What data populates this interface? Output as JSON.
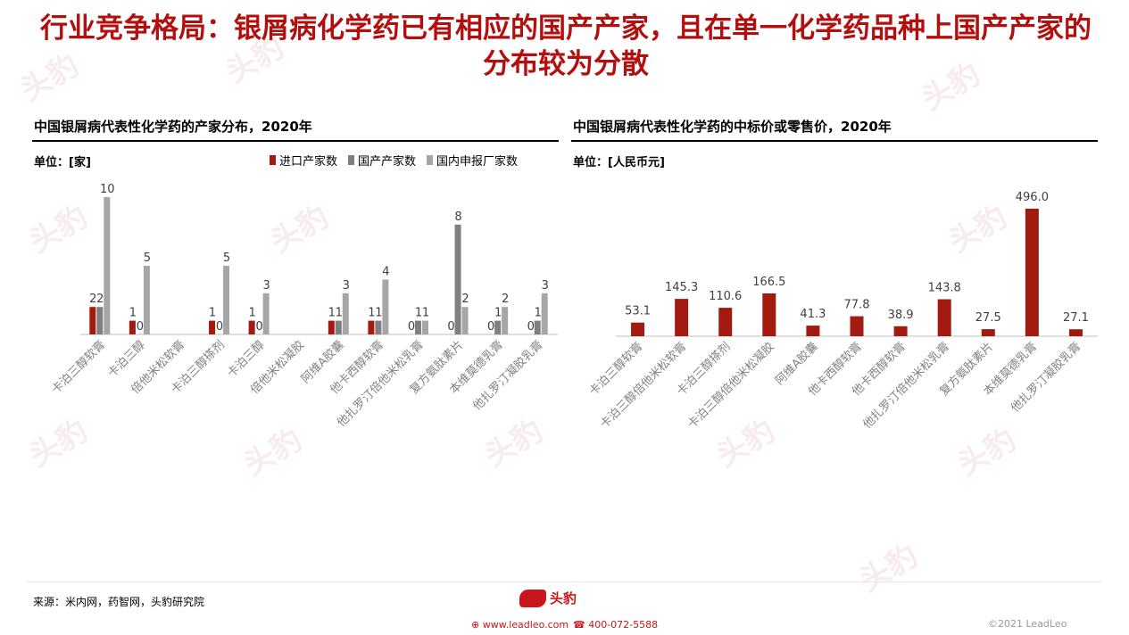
{
  "page_title": "行业竞争格局：银屑病化学药已有相应的国产产家，且在单一化学药品种上国产产家的分布较为分散",
  "left_panel": {
    "title": "中国银屑病代表性化学药的产家分布，2020年",
    "unit": "单位：[家]"
  },
  "right_panel": {
    "title": "中国银屑病代表性化学药的中标价或零售价，2020年",
    "unit": "单位：[人民币元]"
  },
  "chart_data": [
    {
      "type": "bar",
      "categories": [
        "卡泊三醇软膏",
        "卡泊三醇",
        "倍他米松软膏",
        "卡泊三醇搽剂",
        "卡泊三醇",
        "倍他米松凝胶",
        "阿维A胶囊",
        "他卡西醇软膏",
        "他扎罗汀倍他米松乳膏",
        "复方氨肽素片",
        "本维莫德乳膏",
        "他扎罗汀凝胶乳膏"
      ],
      "series": [
        {
          "name": "进口产家数",
          "color": "#a31a11",
          "values": [
            2,
            1,
            null,
            1,
            1,
            null,
            1,
            1,
            0,
            0,
            0,
            0
          ]
        },
        {
          "name": "国产产家数",
          "color": "#7f7f7f",
          "values": [
            2,
            0,
            null,
            0,
            0,
            null,
            1,
            1,
            1,
            8,
            1,
            1
          ]
        },
        {
          "name": "国内申报厂家数",
          "color": "#a6a6a6",
          "values": [
            10,
            5,
            null,
            5,
            3,
            null,
            3,
            4,
            1,
            2,
            2,
            3
          ]
        }
      ],
      "legend_position": "top-right",
      "ylim": [
        0,
        10
      ]
    },
    {
      "type": "bar",
      "categories": [
        "卡泊三醇软膏",
        "卡泊三醇倍他米松软膏",
        "卡泊三醇搽剂",
        "卡泊三醇倍他米松凝胶",
        "阿维A胶囊",
        "他卡西醇软膏",
        "他卡西醇软膏",
        "他扎罗汀倍他米松乳膏",
        "复方氨肽素片",
        "本维莫德乳膏",
        "他扎罗汀凝胶乳膏"
      ],
      "values": [
        53.1,
        145.3,
        110.6,
        166.5,
        41.3,
        77.8,
        38.9,
        143.8,
        27.5,
        496.0,
        27.1
      ],
      "value_labels": [
        "53.1",
        "145.3",
        "110.6",
        "166.5",
        "41.3",
        "77.8",
        "38.9",
        "143.8",
        "27.5",
        "496.0",
        "27.1"
      ],
      "color": "#a31a11",
      "ylim": [
        0,
        496
      ]
    }
  ],
  "footer": {
    "source": "来源：米内网，药智网，头豹研究院",
    "logo_text": "头豹",
    "logo_sub": "LeadLeo",
    "website": "www.leadleo.com",
    "phone": "400-072-5588",
    "copyright": "©2021 LeadLeo"
  },
  "watermark_text": "头豹"
}
